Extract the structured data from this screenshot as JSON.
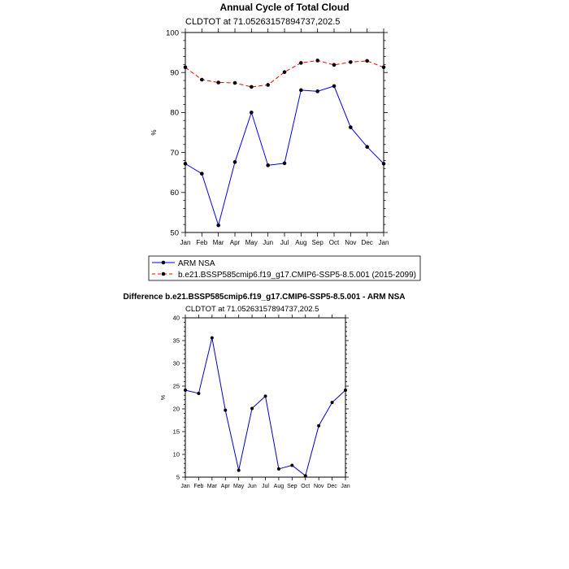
{
  "chart_data": [
    {
      "type": "line",
      "title": "Annual Cycle of Total Cloud",
      "subtitle": "CLDTOT at 71.05263157894737,202.5",
      "xlabel": "",
      "ylabel": "%",
      "categories": [
        "Jan",
        "Feb",
        "Mar",
        "Apr",
        "May",
        "Jun",
        "Jul",
        "Aug",
        "Sep",
        "Oct",
        "Nov",
        "Dec",
        "Jan"
      ],
      "ylim": [
        50,
        100
      ],
      "yticks": [
        50,
        60,
        70,
        80,
        90,
        100
      ],
      "grid": false,
      "legend_position": "bottom",
      "series": [
        {
          "name": "ARM NSA",
          "color": "#0000ff",
          "dash": "solid",
          "values": [
            67.2,
            64.7,
            51.8,
            67.6,
            80.0,
            66.8,
            67.3,
            85.6,
            85.3,
            86.6,
            76.3,
            71.4,
            67.2
          ]
        },
        {
          "name": "b.e21.BSSP585cmip6.f19_g17.CMIP6-SSP5-8.5.001 (2015-2099)",
          "color": "#ff0000",
          "dash": "dashed",
          "values": [
            91.3,
            88.2,
            87.5,
            87.4,
            86.4,
            86.9,
            90.1,
            92.4,
            93.0,
            91.9,
            92.6,
            92.9,
            91.3
          ]
        }
      ]
    },
    {
      "type": "line",
      "title": "Difference b.e21.BSSP585cmip6.f19_g17.CMIP6-SSP5-8.5.001 - ARM NSA",
      "subtitle": "CLDTOT at 71.05263157894737,202.5",
      "xlabel": "",
      "ylabel": "%",
      "categories": [
        "Jan",
        "Feb",
        "Mar",
        "Apr",
        "May",
        "Jun",
        "Jul",
        "Aug",
        "Sep",
        "Oct",
        "Nov",
        "Dec",
        "Jan"
      ],
      "ylim": [
        5,
        40
      ],
      "yticks": [
        5,
        10,
        15,
        20,
        25,
        30,
        35,
        40
      ],
      "grid": false,
      "series": [
        {
          "name": "Difference",
          "color": "#0000cc",
          "dash": "solid",
          "values": [
            24.1,
            23.4,
            35.6,
            19.7,
            6.5,
            20.1,
            22.8,
            6.8,
            7.6,
            5.3,
            16.3,
            21.4,
            24.1
          ]
        }
      ]
    }
  ]
}
